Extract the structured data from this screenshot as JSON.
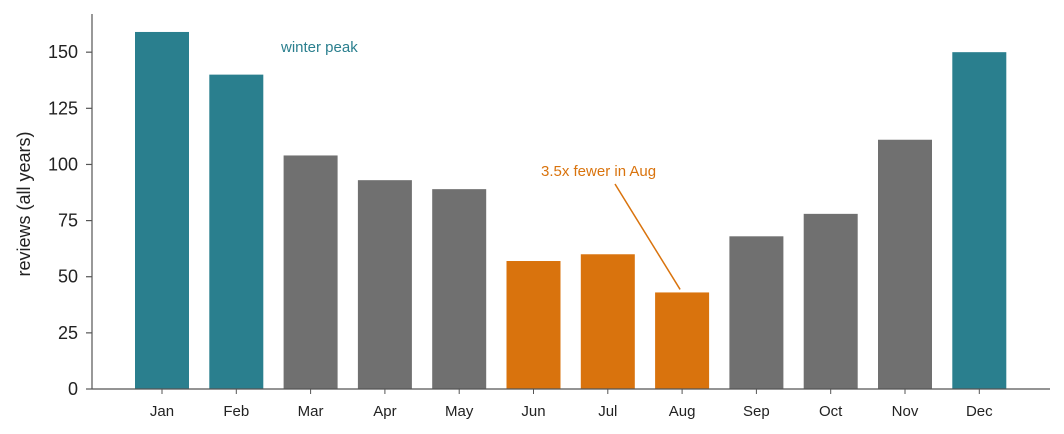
{
  "chart_data": {
    "type": "bar",
    "categories": [
      "Jan",
      "Feb",
      "Mar",
      "Apr",
      "May",
      "Jun",
      "Jul",
      "Aug",
      "Sep",
      "Oct",
      "Nov",
      "Dec"
    ],
    "values": [
      159,
      140,
      104,
      93,
      89,
      57,
      60,
      43,
      68,
      78,
      111,
      150
    ],
    "groups": [
      "winter",
      "winter",
      "other",
      "other",
      "other",
      "summer",
      "summer",
      "summer",
      "other",
      "other",
      "other",
      "winter"
    ],
    "group_colors": {
      "winter": "#2a7f8e",
      "summer": "#d9730d",
      "other": "#707070"
    },
    "ylabel": "reviews (all years)",
    "xlabel": "",
    "ylim": [
      0,
      167
    ],
    "yticks": [
      0,
      25,
      50,
      75,
      100,
      125,
      150
    ],
    "grid": false,
    "annotations": [
      {
        "text": "winter peak",
        "color": "#2a7f8e"
      },
      {
        "text": "3.5x fewer in Aug",
        "color": "#d9730d",
        "points_to": "Aug"
      }
    ]
  }
}
